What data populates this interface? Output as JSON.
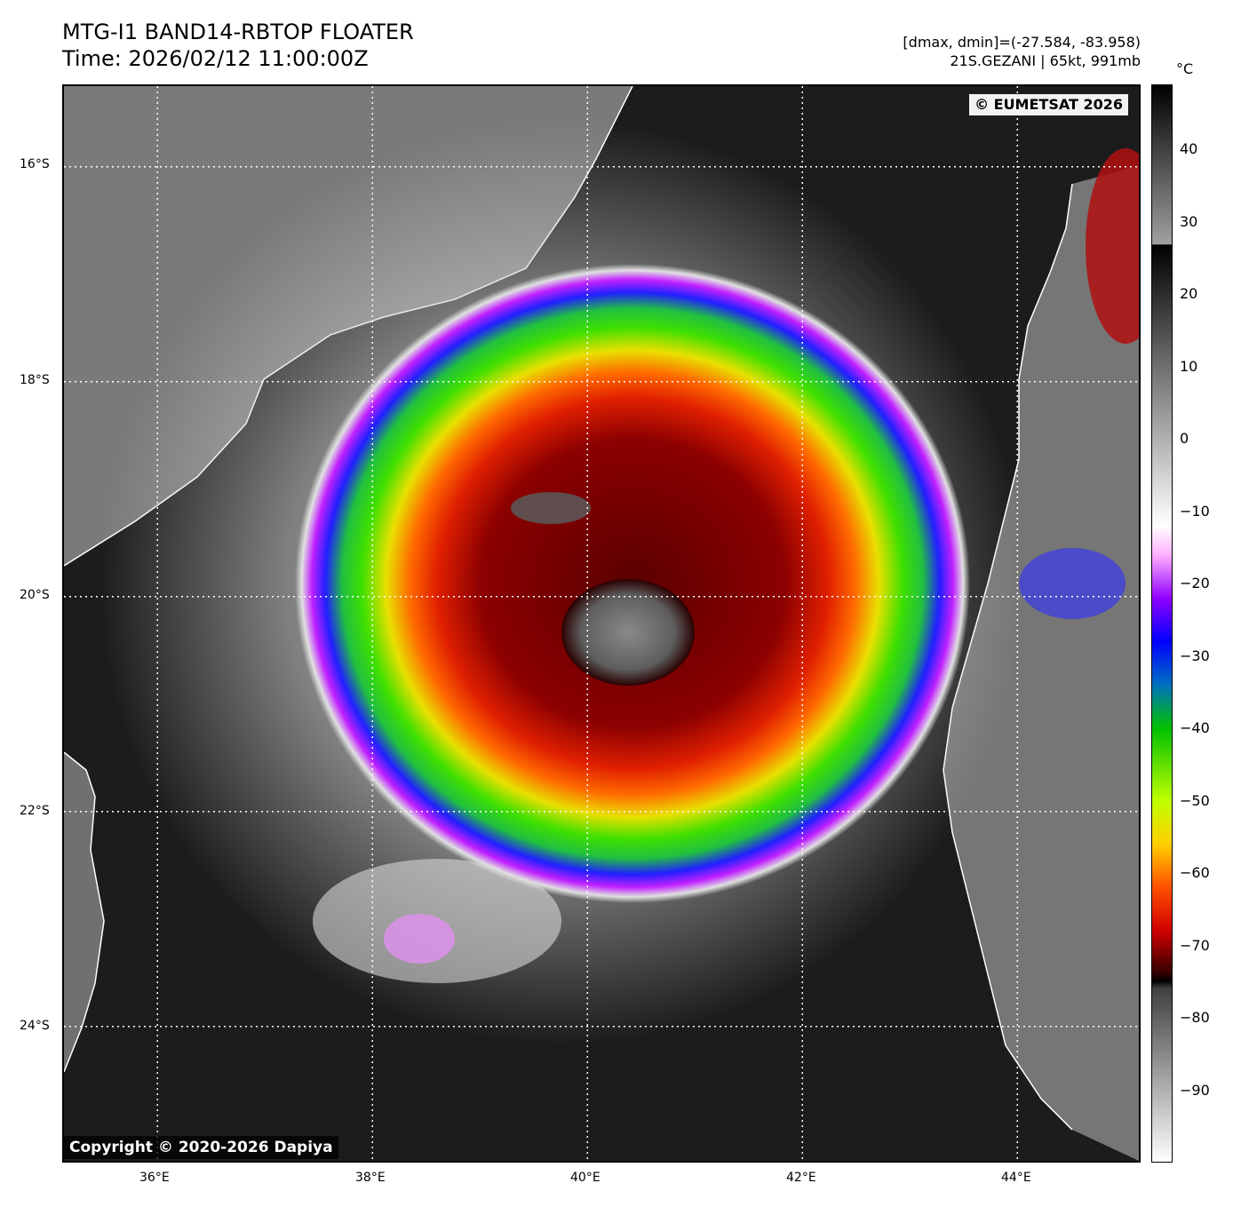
{
  "header": {
    "title": "MTG-I1 BAND14-RBTOP FLOATER",
    "time": "Time: 2026/02/12 11:00:00Z",
    "dminmax": "[dmax, dmin]=(-27.584, -83.958)",
    "storm": "21S.GEZANI | 65kt, 991mb"
  },
  "watermarks": {
    "eumetsat": "© EUMETSAT 2026",
    "dapiya": "Copyright © 2020-2026 Dapiya"
  },
  "axes": {
    "lat_ticks": [
      "16°S",
      "18°S",
      "20°S",
      "22°S",
      "24°S"
    ],
    "lon_ticks": [
      "36°E",
      "38°E",
      "40°E",
      "42°E",
      "44°E"
    ],
    "lon_range": [
      35.13,
      45.13
    ],
    "lat_range": [
      -15.25,
      -25.25
    ],
    "lon_tick_values": [
      36,
      38,
      40,
      42,
      44
    ],
    "lat_tick_values": [
      -16,
      -18,
      -20,
      -22,
      -24
    ]
  },
  "colorbar": {
    "unit": "°C",
    "ticks": [
      "40",
      "30",
      "20",
      "10",
      "0",
      "−10",
      "−20",
      "−30",
      "−40",
      "−50",
      "−60",
      "−70",
      "−80",
      "−90"
    ],
    "tick_values": [
      40,
      30,
      20,
      10,
      0,
      -10,
      -20,
      -30,
      -40,
      -50,
      -60,
      -70,
      -80,
      -90
    ],
    "range": [
      49,
      -100
    ]
  },
  "colors": {
    "ocean": "#1a1a1a",
    "land": "#7d7d7d",
    "coastline": "#ffffff",
    "cold_top": "#8a0000",
    "eye": "#6a6a6a"
  }
}
